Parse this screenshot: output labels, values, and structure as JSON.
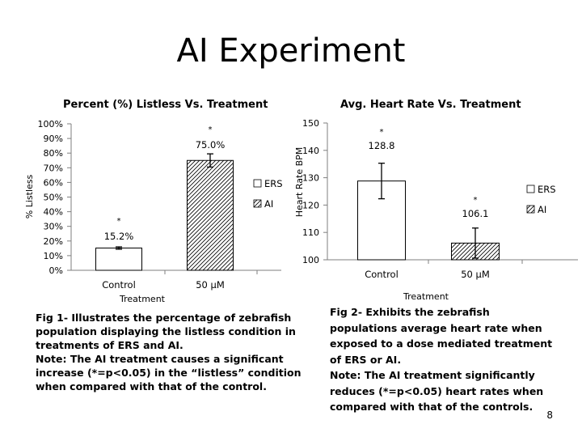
{
  "slide": {
    "title": "AI Experiment",
    "page_number": "8"
  },
  "captions": {
    "left_line1": "Fig 1- Illustrates the percentage of zebrafish population displaying the listless condition in treatments of ERS and AI.",
    "left_line2": "Note: The AI treatment causes a significant increase (*=p<0.05) in the “listless” condition when compared with that of the control.",
    "right_line1": "Fig 2- Exhibits the zebrafish populations average heart rate when exposed to a dose mediated treatment of ERS or AI.",
    "right_line2": "Note: The AI treatment significantly reduces (*=p<0.05) heart rates when compared with that of the controls."
  },
  "colors": {
    "bar_fill": "#ffffff",
    "bar_stroke": "#000000",
    "axis": "#7f7f7f",
    "text": "#000000"
  },
  "chart_data": [
    {
      "type": "bar",
      "title": "Percent (%) Listless Vs. Treatment",
      "xlabel": "Treatment",
      "ylabel": "% Listless",
      "categories": [
        "Control",
        "50 µM"
      ],
      "series": [
        {
          "name": "ERS",
          "pattern": "solid"
        },
        {
          "name": "AI",
          "pattern": "hatch"
        }
      ],
      "bars": [
        {
          "category": "Control",
          "series": "ERS",
          "value": 15.2,
          "error": 0.8,
          "label": "15.2%",
          "marker": "*"
        },
        {
          "category": "50 µM",
          "series": "AI",
          "value": 75.0,
          "error": 4.5,
          "label": "75.0%",
          "marker": "*"
        }
      ],
      "ylim": [
        0,
        100
      ],
      "yticks": [
        0,
        10,
        20,
        30,
        40,
        50,
        60,
        70,
        80,
        90,
        100
      ],
      "ytick_labels": [
        "0%",
        "10%",
        "20%",
        "30%",
        "40%",
        "50%",
        "60%",
        "70%",
        "80%",
        "90%",
        "100%"
      ],
      "legend": "right",
      "grid": false
    },
    {
      "type": "bar",
      "title": "Avg. Heart Rate Vs. Treatment",
      "xlabel": "Treatment",
      "ylabel": "Heart Rate BPM",
      "categories": [
        "Control",
        "50 µM"
      ],
      "series": [
        {
          "name": "ERS",
          "pattern": "solid"
        },
        {
          "name": "AI",
          "pattern": "hatch"
        }
      ],
      "bars": [
        {
          "category": "Control",
          "series": "ERS",
          "value": 128.8,
          "error": 6.5,
          "label": "128.8",
          "marker": "*"
        },
        {
          "category": "50 µM",
          "series": "AI",
          "value": 106.1,
          "error": 5.5,
          "label": "106.1",
          "marker": "*"
        }
      ],
      "ylim": [
        100,
        150
      ],
      "yticks": [
        100,
        110,
        120,
        130,
        140,
        150
      ],
      "ytick_labels": [
        "100",
        "110",
        "120",
        "130",
        "140",
        "150"
      ],
      "legend": "right",
      "grid": false
    }
  ]
}
